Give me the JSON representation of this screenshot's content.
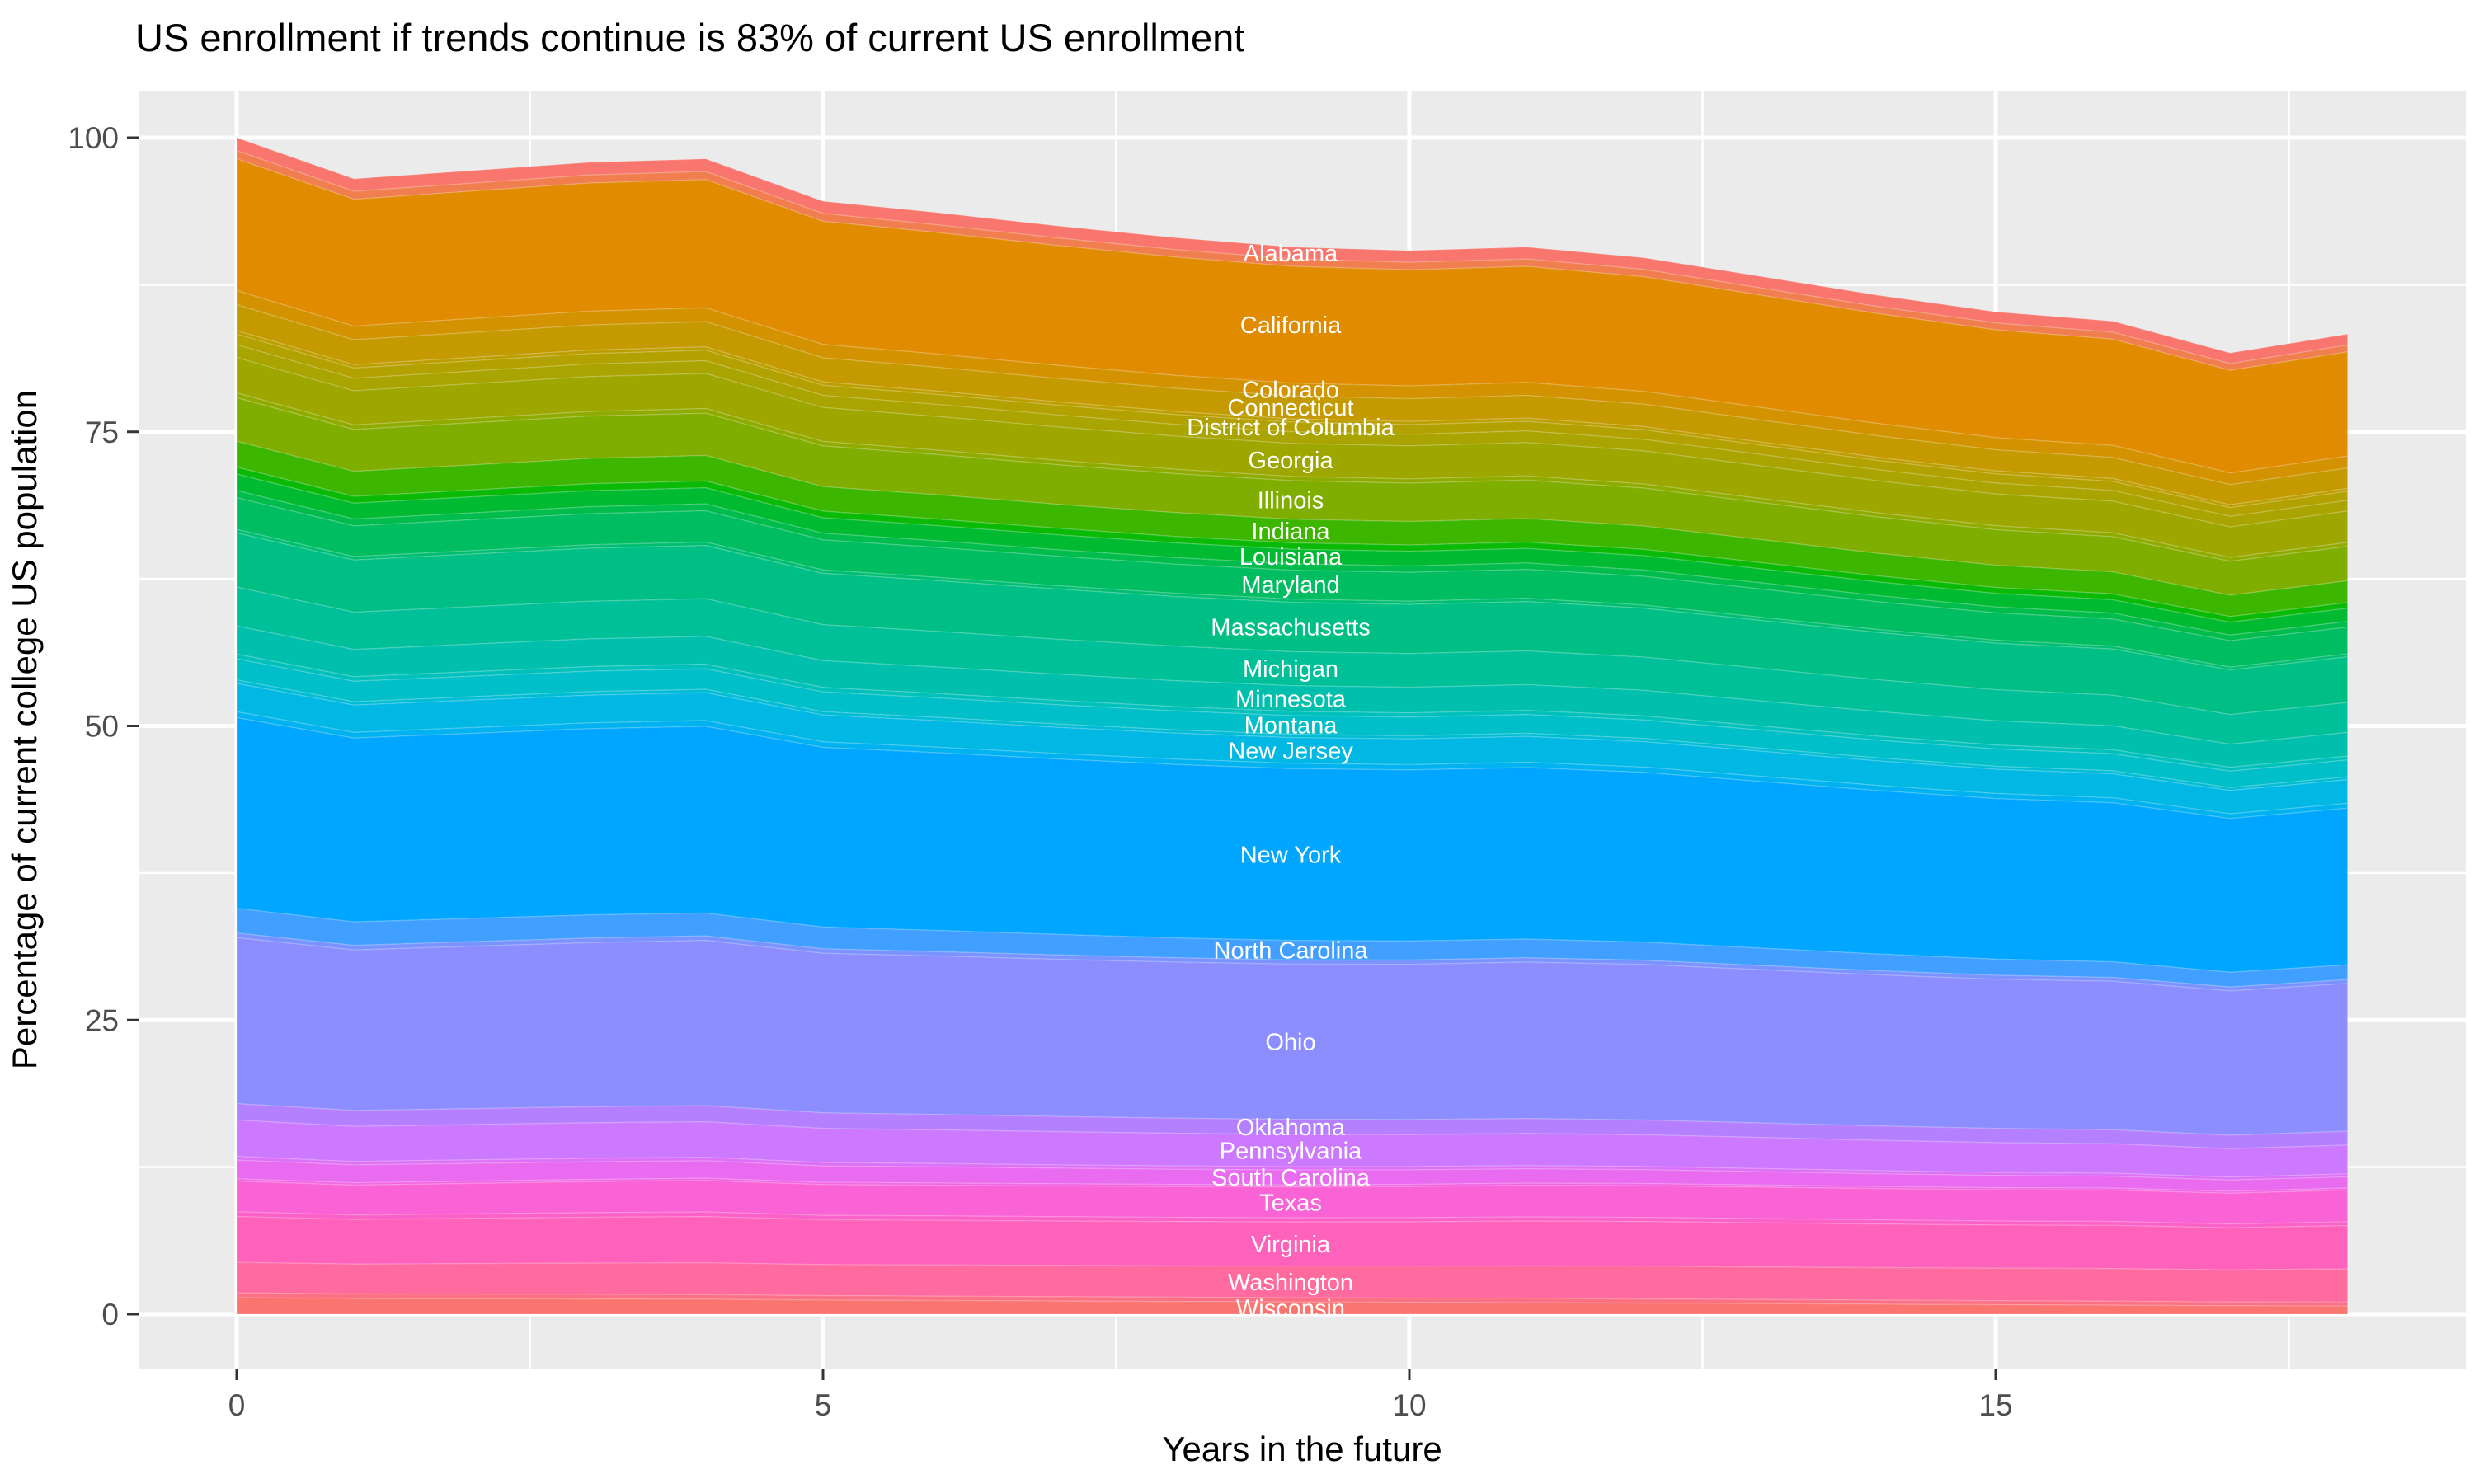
{
  "title": "US enrollment if trends continue is 83% of current US enrollment",
  "axes": {
    "x": {
      "label": "Years in the future",
      "major_ticks": [
        0,
        5,
        10,
        15
      ],
      "minor_ticks": [
        2.5,
        7.5,
        12.5,
        17.5
      ],
      "range_shown": [
        -0.85,
        19.0
      ]
    },
    "y": {
      "label": "Percentage of current college US population",
      "major_ticks": [
        0,
        25,
        50,
        75,
        100
      ],
      "minor_ticks": [
        12.5,
        37.5,
        62.5,
        87.5
      ],
      "range_shown": [
        -5,
        105
      ]
    }
  },
  "panel": {
    "background": "#EBEBEB",
    "gridline_color": "#FFFFFF",
    "tick_mark_color": "#333333",
    "tick_label_color": "#4D4D4D"
  },
  "chart_data": {
    "type": "area",
    "stacked": true,
    "x": [
      0,
      1,
      2,
      3,
      4,
      5,
      6,
      7,
      8,
      9,
      10,
      11,
      12,
      13,
      14,
      15,
      16,
      17,
      18
    ],
    "totals": [
      100,
      96.5,
      97.2,
      97.9,
      98.2,
      94.6,
      93.6,
      92.5,
      91.5,
      90.7,
      90.4,
      90.7,
      89.8,
      88.2,
      86.6,
      85.2,
      84.4,
      81.7,
      83.3
    ],
    "title": "US enrollment if trends continue is 83% of current US enrollment",
    "xlabel": "Years in the future",
    "ylabel": "Percentage of current college US population",
    "ylim": [
      0,
      100
    ],
    "label_x_year": 9,
    "note": "stacked top-to-bottom alphabetically; thin unlabeled minor-state bands appear as faint stripes between labeled bands; per-state values are start(year 0) and end(year 18) percentages, linearly interpolated and scaled so the yearly stack sum follows totals[]",
    "series": [
      {
        "name": "Alabama",
        "color": "#F8766D",
        "start": 1.1,
        "end": 0.94,
        "labeled": true
      },
      {
        "name": "",
        "color": "#F07E4E",
        "start": 0.7,
        "end": 0.58,
        "labeled": false
      },
      {
        "name": "California",
        "color": "#E08B00",
        "start": 11.2,
        "end": 8.96,
        "labeled": true
      },
      {
        "name": "Colorado",
        "color": "#D39200",
        "start": 1.2,
        "end": 1.02,
        "labeled": true
      },
      {
        "name": "Connecticut",
        "color": "#C49A00",
        "start": 2.2,
        "end": 1.76,
        "labeled": true
      },
      {
        "name": "",
        "color": "#BD9E00",
        "start": 0.3,
        "end": 0.25,
        "labeled": false
      },
      {
        "name": "District of Columbia",
        "color": "#B3A100",
        "start": 0.9,
        "end": 0.77,
        "labeled": true
      },
      {
        "name": "",
        "color": "#A9A400",
        "start": 1.1,
        "end": 0.91,
        "labeled": false
      },
      {
        "name": "Georgia",
        "color": "#9DA700",
        "start": 3.0,
        "end": 2.7,
        "labeled": true
      },
      {
        "name": "",
        "color": "#8FAB00",
        "start": 0.4,
        "end": 0.33,
        "labeled": false
      },
      {
        "name": "Illinois",
        "color": "#7FAE00",
        "start": 3.7,
        "end": 2.96,
        "labeled": true
      },
      {
        "name": "Indiana",
        "color": "#3DB600",
        "start": 2.2,
        "end": 1.87,
        "labeled": true
      },
      {
        "name": "",
        "color": "#0ABA07",
        "start": 0.6,
        "end": 0.5,
        "labeled": false
      },
      {
        "name": "Louisiana",
        "color": "#00BB31",
        "start": 1.4,
        "end": 1.12,
        "labeled": true
      },
      {
        "name": "",
        "color": "#00BC4C",
        "start": 0.6,
        "end": 0.5,
        "labeled": false
      },
      {
        "name": "Maryland",
        "color": "#00BD61",
        "start": 2.7,
        "end": 2.3,
        "labeled": true
      },
      {
        "name": "",
        "color": "#00BE71",
        "start": 0.3,
        "end": 0.25,
        "labeled": false
      },
      {
        "name": "Massachusetts",
        "color": "#00BF85",
        "start": 4.6,
        "end": 3.91,
        "labeled": true
      },
      {
        "name": "Michigan",
        "color": "#00C09A",
        "start": 3.3,
        "end": 2.57,
        "labeled": true
      },
      {
        "name": "Minnesota",
        "color": "#00C0AD",
        "start": 2.4,
        "end": 2.04,
        "labeled": true
      },
      {
        "name": "",
        "color": "#00C0BB",
        "start": 0.4,
        "end": 0.33,
        "labeled": false
      },
      {
        "name": "Montana",
        "color": "#00BFC8",
        "start": 1.8,
        "end": 1.44,
        "labeled": true
      },
      {
        "name": "",
        "color": "#00BCD5",
        "start": 0.3,
        "end": 0.25,
        "labeled": false
      },
      {
        "name": "New Jersey",
        "color": "#00B8E3",
        "start": 2.4,
        "end": 2.04,
        "labeled": true
      },
      {
        "name": "",
        "color": "#00B2F0",
        "start": 0.5,
        "end": 0.42,
        "labeled": false
      },
      {
        "name": "New York",
        "color": "#00A6FF",
        "start": 16.2,
        "end": 13.45,
        "labeled": true
      },
      {
        "name": "North Carolina",
        "color": "#419FFF",
        "start": 2.1,
        "end": 1.26,
        "labeled": true
      },
      {
        "name": "",
        "color": "#7A93FF",
        "start": 0.4,
        "end": 0.33,
        "labeled": false
      },
      {
        "name": "Ohio",
        "color": "#8C8EFF",
        "start": 14.1,
        "end": 12.69,
        "labeled": true
      },
      {
        "name": "Oklahoma",
        "color": "#B580FF",
        "start": 1.4,
        "end": 1.19,
        "labeled": true
      },
      {
        "name": "Pennsylvania",
        "color": "#CD79FF",
        "start": 3.1,
        "end": 2.48,
        "labeled": true
      },
      {
        "name": "",
        "color": "#DD70F7",
        "start": 0.3,
        "end": 0.25,
        "labeled": false
      },
      {
        "name": "South Carolina",
        "color": "#E96BEF",
        "start": 1.6,
        "end": 0.96,
        "labeled": true
      },
      {
        "name": "",
        "color": "#F365E3",
        "start": 0.2,
        "end": 0.17,
        "labeled": false
      },
      {
        "name": "Texas",
        "color": "#F963D5",
        "start": 2.6,
        "end": 2.73,
        "labeled": true
      },
      {
        "name": "",
        "color": "#FC61C8",
        "start": 0.4,
        "end": 0.33,
        "labeled": false
      },
      {
        "name": "Virginia",
        "color": "#FF62BA",
        "start": 3.9,
        "end": 3.71,
        "labeled": true
      },
      {
        "name": "Washington",
        "color": "#FF6B9E",
        "start": 2.6,
        "end": 2.86,
        "labeled": true
      },
      {
        "name": "",
        "color": "#FC7083",
        "start": 0.4,
        "end": 0.33,
        "labeled": false
      },
      {
        "name": "Wisconsin",
        "color": "#FA7470",
        "start": 1.4,
        "end": 0.7,
        "labeled": true
      }
    ]
  }
}
